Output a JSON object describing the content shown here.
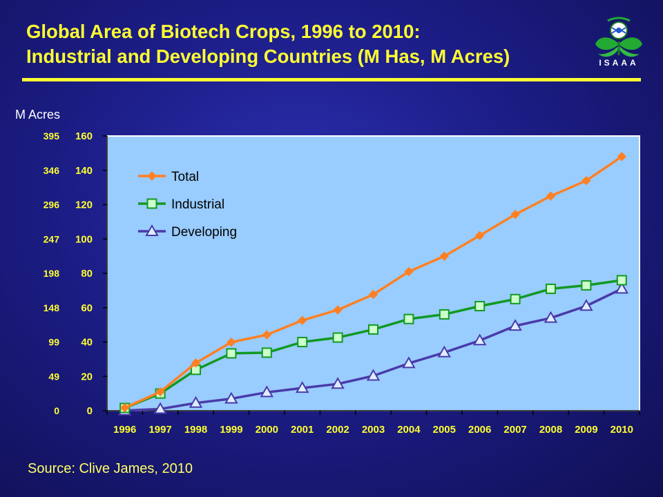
{
  "title": {
    "line1": "Global Area of Biotech Crops, 1996 to 2010:",
    "line2": "Industrial and Developing Countries (M Has, M Acres)"
  },
  "logo": {
    "text": "ISAAA"
  },
  "source": "Source: Clive James, 2010",
  "colors": {
    "background": "#1c1d86",
    "title": "#ffff33",
    "plot_area": "#99ccff",
    "total": "#ff8022",
    "industrial": "#119922",
    "developing": "#4a3aa8"
  },
  "chart_data": {
    "type": "line",
    "title": "",
    "ylabel_secondary": "M Acres",
    "x": [
      "1996",
      "1997",
      "1998",
      "1999",
      "2000",
      "2001",
      "2002",
      "2003",
      "2004",
      "2005",
      "2006",
      "2007",
      "2008",
      "2009",
      "2010"
    ],
    "ylim": [
      0,
      160
    ],
    "y_ticks": [
      "0",
      "20",
      "40",
      "60",
      "80",
      "100",
      "120",
      "140",
      "160"
    ],
    "acre_ticks": [
      "0",
      "49",
      "99",
      "148",
      "198",
      "247",
      "296",
      "346",
      "395"
    ],
    "grid": false,
    "legend_position": "top-left",
    "series": [
      {
        "name": "Total",
        "marker": "diamond",
        "values": [
          1.7,
          11,
          27.8,
          39.9,
          44.2,
          52.6,
          58.7,
          67.7,
          81.0,
          90.0,
          102.0,
          114.3,
          125.0,
          134.0,
          148.0
        ]
      },
      {
        "name": "Industrial",
        "marker": "square",
        "values": [
          1.6,
          10,
          23.8,
          33.4,
          33.8,
          40.0,
          42.6,
          47.3,
          53.4,
          56.1,
          60.9,
          65.0,
          71.0,
          73.0,
          76.0
        ]
      },
      {
        "name": "Developing",
        "marker": "triangle",
        "values": [
          0.1,
          1.0,
          4.5,
          7.0,
          10.7,
          13.2,
          15.6,
          20.3,
          27.6,
          33.9,
          40.9,
          49.4,
          54.0,
          61.0,
          71.0
        ]
      }
    ]
  }
}
